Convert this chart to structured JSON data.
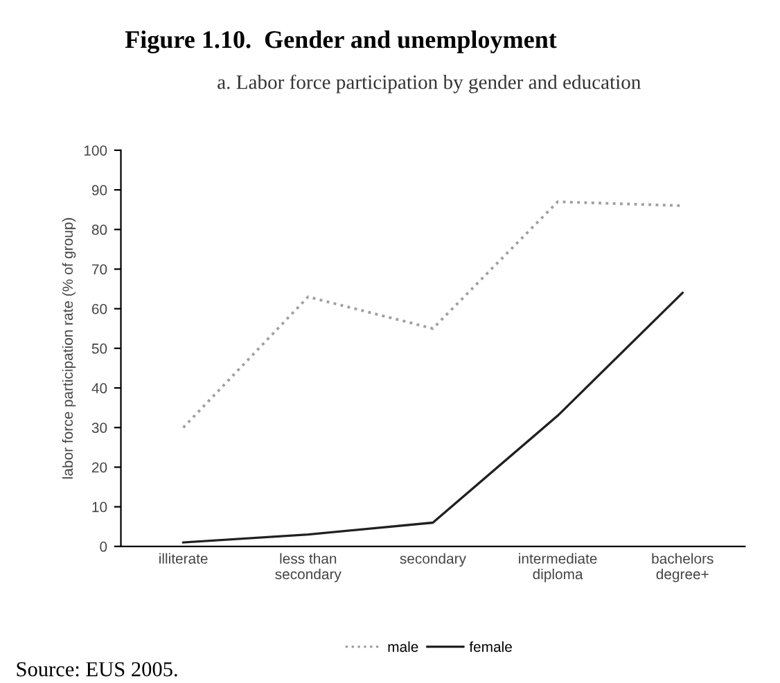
{
  "chart_data": {
    "type": "line",
    "title": "Figure 1.10.  Gender and unemployment",
    "subtitle": "a. Labor force participation by gender and education",
    "ylabel": "labor force participation rate (% of group)",
    "categories": [
      "illiterate",
      "less than\nsecondary",
      "secondary",
      "intermediate\ndiploma",
      "bachelors\ndegree+"
    ],
    "series": [
      {
        "name": "male",
        "color": "#a0a0a0",
        "line_style": "dotted",
        "values": [
          30,
          63,
          55,
          87,
          86
        ]
      },
      {
        "name": "female",
        "color": "#202020",
        "line_style": "solid",
        "values": [
          1,
          3,
          6,
          33,
          64
        ]
      }
    ],
    "ylim": [
      0,
      100
    ],
    "yticks": [
      0,
      10,
      20,
      30,
      40,
      50,
      60,
      70,
      80,
      90,
      100
    ],
    "grid": false,
    "legend": "bottom",
    "marker": "none",
    "annotations": [
      "Source: EUS 2005."
    ]
  }
}
